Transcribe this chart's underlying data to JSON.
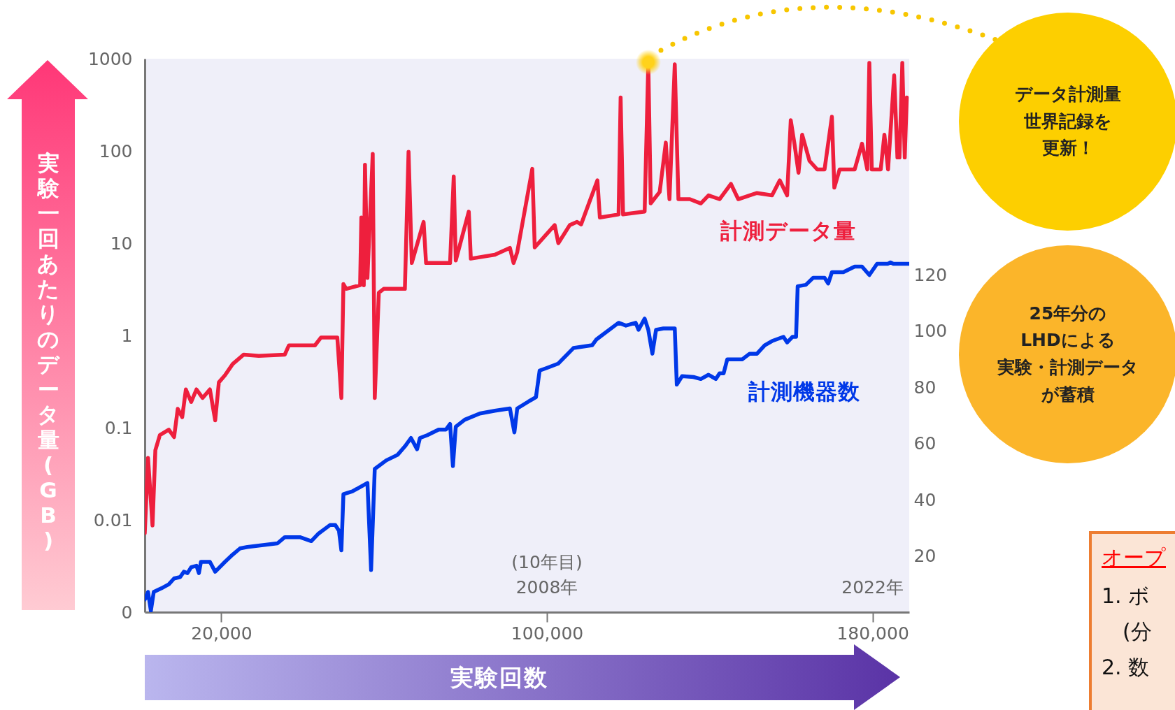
{
  "chart_data": {
    "type": "line",
    "xlabel": "実験回数",
    "ylabel": "実験一回あたりのデータ量(GB)",
    "log": "y",
    "xlim": [
      1200,
      189000
    ],
    "xticks": [
      {
        "value": 20000,
        "label": "20,000"
      },
      {
        "value": 100000,
        "label": "100,000"
      },
      {
        "value": 180000,
        "label": "180,000"
      }
    ],
    "ylim": [
      0.001,
      1000
    ],
    "yticks": [
      {
        "value": 0.001,
        "label": "0"
      },
      0.01,
      0.1,
      1,
      10,
      100,
      1000
    ],
    "y2lim": [
      0,
      197
    ],
    "y2ticks": [
      20,
      40,
      60,
      80,
      100,
      120
    ],
    "series": [
      {
        "name": "計測データ量",
        "color": "#ee1f3d",
        "x": [
          1200,
          2000,
          3100,
          3800,
          4900,
          7100,
          8400,
          9300,
          10400,
          11300,
          12600,
          13900,
          15400,
          17200,
          18500,
          19400,
          20900,
          22800,
          25500,
          29200,
          35600,
          36600,
          43000,
          44500,
          48500,
          49500,
          50000,
          50700,
          54100,
          54400,
          55000,
          55300,
          55900,
          57200,
          57700,
          58700,
          59900,
          65100,
          66000,
          66800,
          69700,
          70300,
          76200,
          77100,
          77600,
          80800,
          81300,
          87200,
          90900,
          91800,
          92700,
          96400,
          97000,
          101900,
          102800,
          105600,
          107400,
          108400,
          112400,
          113000,
          117600,
          118100,
          118700,
          124000,
          124900,
          125500,
          127700,
          129200,
          130100,
          131400,
          132300,
          135100,
          137800,
          139700,
          142400,
          145200,
          147000,
          149800,
          151600,
          155300,
          157200,
          159000,
          159900,
          160800,
          161800,
          162700,
          164500,
          166400,
          168200,
          170000,
          170600,
          171900,
          175600,
          177400,
          178700,
          179200,
          179800,
          182000,
          182900,
          183800,
          185300,
          186100,
          186600,
          187300,
          187900,
          188400
        ],
        "values": [
          0.0072,
          0.047,
          0.0087,
          0.057,
          0.083,
          0.095,
          0.079,
          0.16,
          0.13,
          0.26,
          0.19,
          0.26,
          0.21,
          0.26,
          0.12,
          0.31,
          0.37,
          0.49,
          0.62,
          0.6,
          0.62,
          0.78,
          0.78,
          0.95,
          0.95,
          0.21,
          3.6,
          3.2,
          3.5,
          19,
          3.5,
          71,
          4.2,
          93,
          0.21,
          2.9,
          3.2,
          3.2,
          98,
          6.1,
          17,
          6.1,
          6.1,
          53,
          6.5,
          22,
          6.8,
          7.5,
          8.9,
          6.1,
          8,
          64,
          9,
          15.7,
          10,
          15.7,
          17,
          16,
          48,
          19,
          20.5,
          380,
          20.5,
          22,
          900,
          27,
          36,
          123,
          30,
          870,
          30,
          30,
          27,
          33,
          30,
          44,
          30,
          33,
          35,
          33,
          48,
          33,
          215,
          120,
          58,
          150,
          78,
          63,
          63,
          235,
          40,
          63,
          63,
          120,
          63,
          900,
          63,
          63,
          150,
          63,
          660,
          85,
          85,
          900,
          85,
          380
        ]
      },
      {
        "name": "計測機器数",
        "color": "#0038e8",
        "axis": "y2",
        "x": [
          1200,
          2000,
          2700,
          3400,
          5300,
          7100,
          8400,
          9900,
          10800,
          11700,
          12600,
          13900,
          14500,
          15000,
          17200,
          18500,
          20900,
          22800,
          24600,
          26400,
          29200,
          33800,
          35600,
          39300,
          42100,
          43900,
          46700,
          48000,
          48900,
          49500,
          50000,
          52200,
          55900,
          56800,
          57700,
          60500,
          63300,
          65100,
          66600,
          68100,
          68800,
          70600,
          73400,
          75200,
          76200,
          76900,
          77600,
          79800,
          83500,
          87200,
          90900,
          92000,
          92700,
          95500,
          97300,
          98200,
          100100,
          102800,
          103800,
          106500,
          111100,
          112100,
          113000,
          117600,
          119400,
          121800,
          122500,
          124000,
          124900,
          125900,
          126800,
          128600,
          131400,
          131900,
          133200,
          136000,
          137800,
          139700,
          141500,
          142400,
          143400,
          144300,
          148000,
          149800,
          151600,
          153500,
          155300,
          158100,
          159000,
          160300,
          161200,
          161600,
          163600,
          165400,
          168200,
          169100,
          170000,
          172800,
          175600,
          177400,
          179200,
          181100,
          183800,
          184400,
          185100,
          189000
        ],
        "values": [
          4.5,
          7.2,
          0.5,
          7.2,
          8.5,
          9.9,
          12,
          12.5,
          14.4,
          13.9,
          16,
          16.5,
          13.9,
          17.9,
          17.9,
          14.4,
          17.9,
          20.5,
          22.7,
          23.2,
          23.7,
          24.5,
          26.7,
          26.7,
          25.3,
          28,
          31,
          31,
          29,
          22,
          42,
          43,
          46,
          15,
          51,
          54,
          56,
          59,
          62,
          58,
          62,
          63,
          65,
          65,
          67,
          52,
          66,
          68.5,
          70.7,
          71.7,
          72.5,
          64,
          72.5,
          75,
          76.5,
          86,
          87,
          88.5,
          90,
          94,
          95,
          97,
          98,
          103,
          102,
          103,
          100.5,
          104.5,
          100.5,
          92,
          100.5,
          101,
          101,
          81,
          84,
          83.7,
          83,
          84.5,
          83,
          85,
          85,
          90,
          90,
          92,
          92,
          95,
          96.5,
          98,
          96,
          98,
          98,
          116,
          116.5,
          119,
          119,
          117,
          121,
          121,
          123,
          123,
          120,
          124,
          124,
          124.5,
          124,
          124
        ]
      }
    ],
    "annotations": [
      "(10年目)",
      "2008年",
      "2022年",
      "データ計測量",
      "世界記録を",
      "更新！",
      "25年分の",
      "LHDによる",
      "実験・計測データ",
      "が蓄積",
      "オープ",
      "1. ボ",
      "(分",
      "2. 数"
    ]
  }
}
